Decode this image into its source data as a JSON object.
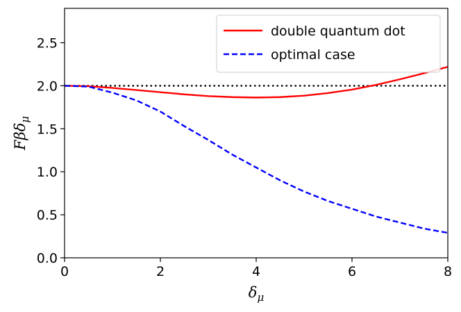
{
  "chart_data": {
    "type": "line",
    "xlabel": "δ_μ",
    "ylabel": "Fβδ_μ",
    "xlim": [
      0,
      8
    ],
    "ylim": [
      0,
      2.9
    ],
    "xticks": [
      0,
      2,
      4,
      6,
      8
    ],
    "yticks": [
      0.0,
      0.5,
      1.0,
      1.5,
      2.0,
      2.5
    ],
    "xtick_labels": [
      "0",
      "2",
      "4",
      "6",
      "8"
    ],
    "ytick_labels": [
      "0.0",
      "0.5",
      "1.0",
      "1.5",
      "2.0",
      "2.5"
    ],
    "grid": false,
    "legend_position": "top-right",
    "series": [
      {
        "name": "double quantum dot",
        "color": "#ff0000",
        "style": "solid",
        "x": [
          0,
          0.5,
          1,
          1.5,
          2,
          2.5,
          3,
          3.5,
          4,
          4.5,
          5,
          5.5,
          6,
          6.5,
          7,
          7.5,
          8
        ],
        "y": [
          2.0,
          1.995,
          1.975,
          1.95,
          1.925,
          1.9,
          1.88,
          1.868,
          1.863,
          1.868,
          1.885,
          1.915,
          1.955,
          2.01,
          2.075,
          2.145,
          2.22
        ]
      },
      {
        "name": "optimal case",
        "color": "#0000ff",
        "style": "dashed",
        "x": [
          0,
          0.5,
          1,
          1.5,
          2,
          2.5,
          3,
          3.5,
          4,
          4.5,
          5,
          5.5,
          6,
          6.5,
          7,
          7.5,
          8
        ],
        "y": [
          2.0,
          1.99,
          1.92,
          1.83,
          1.7,
          1.53,
          1.37,
          1.2,
          1.05,
          0.9,
          0.77,
          0.66,
          0.57,
          0.48,
          0.41,
          0.34,
          0.29
        ]
      },
      {
        "name": "",
        "color": "#000000",
        "style": "dotted",
        "x": [
          0,
          8
        ],
        "y": [
          2.0,
          2.0
        ]
      }
    ]
  }
}
